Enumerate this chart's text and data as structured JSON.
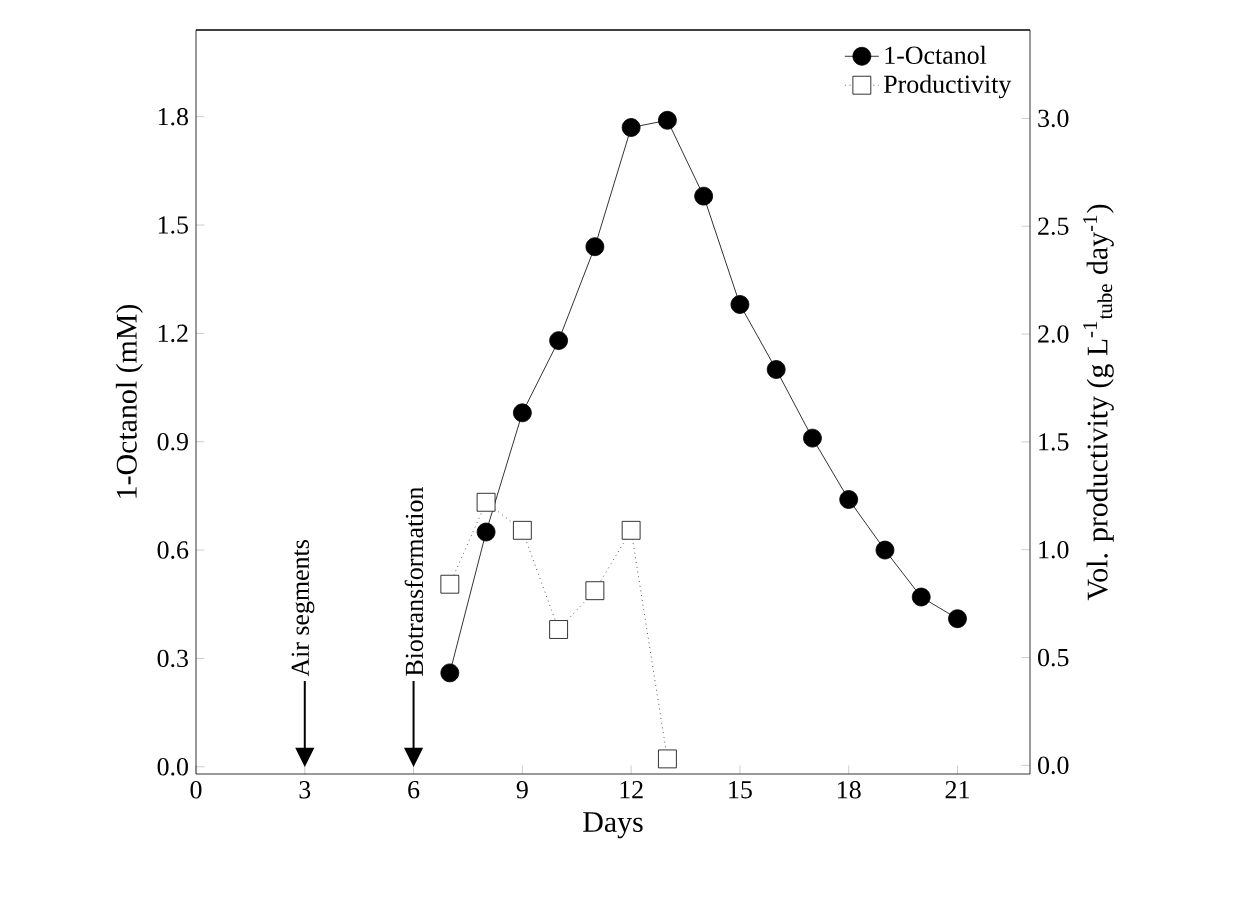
{
  "chart_data": {
    "type": "line",
    "xlabel": "Days",
    "ylabel": "1-Octanol (mM)",
    "y2label": "Vol. productivity (g L$^{-1}$$_{tube}$ day$^{-1}$)",
    "x": [
      7,
      8,
      9,
      10,
      11,
      12,
      13,
      14,
      15,
      16,
      17,
      18,
      19,
      20,
      21
    ],
    "series": [
      {
        "name": "1-Octanol",
        "color": "#000000",
        "marker": "circle",
        "line_style": "solid",
        "values": [
          0.26,
          0.65,
          0.98,
          1.18,
          1.44,
          1.77,
          1.79,
          1.58,
          1.28,
          1.1,
          0.91,
          0.74,
          0.6,
          0.47,
          0.41
        ]
      },
      {
        "name": "Productivity",
        "color": "#000000",
        "marker": "square",
        "line_style": "dotted",
        "axis": "y2",
        "x": [
          7,
          8,
          9,
          10,
          11,
          12,
          13
        ],
        "values": [
          0.84,
          1.22,
          1.09,
          0.63,
          0.81,
          1.09,
          0.03
        ]
      }
    ],
    "xlim": [
      0,
      23
    ],
    "xticks": [
      0,
      3,
      6,
      9,
      12,
      15,
      18,
      21
    ],
    "ylim": [
      -0.02,
      2.04
    ],
    "yticks": [
      {
        "value": 0,
        "label": "0.0"
      },
      0.3,
      0.6,
      0.9,
      1.2,
      1.5,
      1.8
    ],
    "y2lim": [
      -0.04,
      3.41
    ],
    "y2ticks": [
      {
        "value": 0,
        "label": "0.0"
      },
      0.5,
      {
        "value": 1,
        "label": "1.0"
      },
      1.5,
      {
        "value": 2,
        "label": "2.0"
      },
      2.5,
      {
        "value": 3,
        "label": "3.0"
      }
    ],
    "ref_lines": [
      {
        "axis": "x",
        "value": 3,
        "label": "Air segments"
      },
      {
        "axis": "x",
        "value": 6,
        "label": "Biotransformation"
      }
    ],
    "legend": "top right",
    "grid": false
  }
}
